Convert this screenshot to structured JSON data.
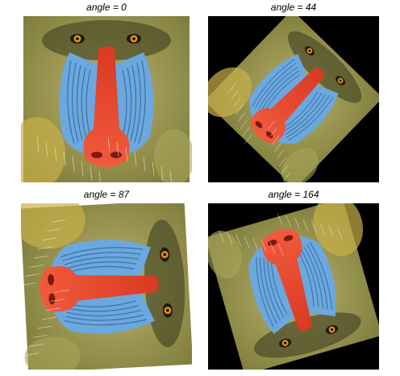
{
  "panels": [
    {
      "caption": "angle = 0",
      "angle": 0
    },
    {
      "caption": "angle = 44",
      "angle": 44
    },
    {
      "caption": "angle = 87",
      "angle": 87
    },
    {
      "caption": "angle = 164",
      "angle": 164
    }
  ],
  "colors": {
    "fur": "#7d7a3a",
    "fur_light": "#b8b26a",
    "nose": "#e8412a",
    "cheek": "#6aa8df",
    "eye": "#e0901d",
    "background_rotated": "#000000"
  }
}
